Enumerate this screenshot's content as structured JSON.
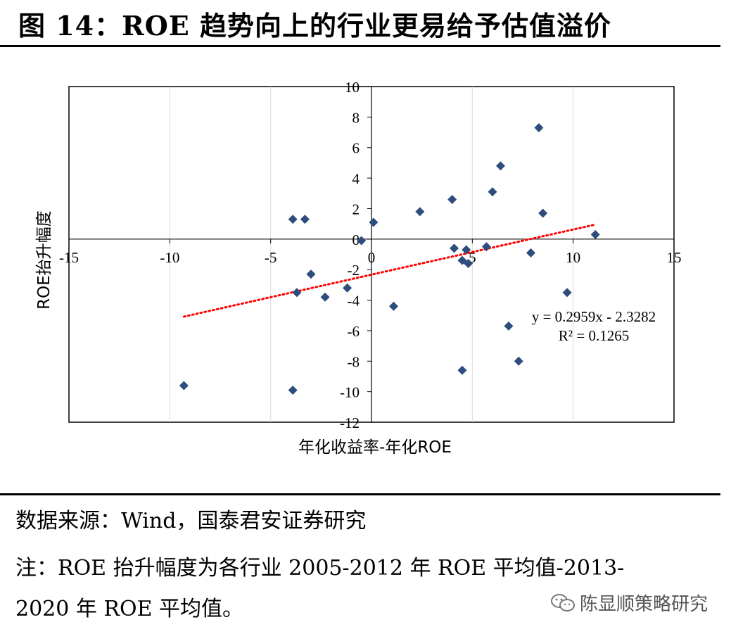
{
  "header": {
    "title": "图 14：ROE 趋势向上的行业更易给予估值溢价"
  },
  "chart_data": {
    "type": "scatter",
    "title": "",
    "xlabel": "年化收益率-年化ROE",
    "ylabel": "ROE抬升幅度",
    "xlim": [
      -15,
      15
    ],
    "ylim": [
      -12,
      10
    ],
    "xticks": [
      -15,
      -10,
      -5,
      0,
      5,
      10,
      15
    ],
    "yticks": [
      -12,
      -10,
      -8,
      -6,
      -4,
      -2,
      0,
      2,
      4,
      6,
      8,
      10
    ],
    "grid": "vertical",
    "marker_color": "#2e4d7d",
    "trendline": {
      "slope": 0.2959,
      "intercept": -2.3282,
      "x_range": [
        -9.3,
        11.0
      ],
      "color": "#ff0000",
      "equation": "y = 0.2959x - 2.3282",
      "r2": "R² = 0.1265"
    },
    "points": [
      [
        -9.3,
        -9.6
      ],
      [
        -3.9,
        -9.9
      ],
      [
        -3.9,
        1.3
      ],
      [
        -3.3,
        1.3
      ],
      [
        -3.7,
        -3.5
      ],
      [
        -3.0,
        -2.3
      ],
      [
        -2.3,
        -3.8
      ],
      [
        -1.2,
        -3.2
      ],
      [
        -0.5,
        -0.1
      ],
      [
        0.1,
        1.1
      ],
      [
        1.1,
        -4.4
      ],
      [
        2.4,
        1.8
      ],
      [
        4.0,
        2.6
      ],
      [
        4.1,
        -0.6
      ],
      [
        4.5,
        -1.4
      ],
      [
        4.7,
        -0.7
      ],
      [
        4.8,
        -1.6
      ],
      [
        4.5,
        -8.6
      ],
      [
        5.7,
        -0.5
      ],
      [
        6.0,
        3.1
      ],
      [
        6.4,
        4.8
      ],
      [
        6.8,
        -5.7
      ],
      [
        7.3,
        -8.0
      ],
      [
        7.9,
        -0.9
      ],
      [
        8.3,
        7.3
      ],
      [
        8.5,
        1.7
      ],
      [
        9.7,
        -3.5
      ],
      [
        11.1,
        0.3
      ]
    ]
  },
  "footer": {
    "source": "数据来源：Wind，国泰君安证券研究",
    "note_line1": "注：ROE 抬升幅度为各行业 2005-2012 年 ROE 平均值-2013-",
    "note_line2": "2020 年 ROE 平均值。",
    "watermark": "陈显顺策略研究"
  }
}
